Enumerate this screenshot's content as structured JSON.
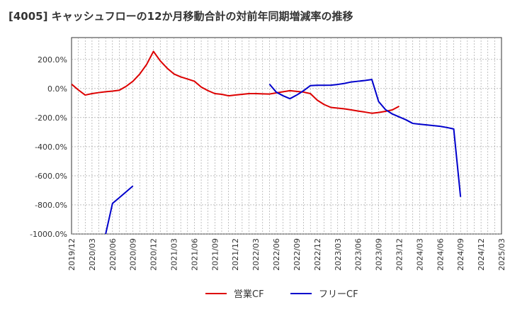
{
  "chart_data": {
    "type": "line",
    "title": "[4005]  キャッシュフローの12か月移動合計の対前年同期増減率の推移",
    "xlabel": "",
    "ylabel": "",
    "ylim": [
      -1000,
      350
    ],
    "yticks": [
      200,
      0,
      -200,
      -400,
      -600,
      -800,
      -1000
    ],
    "ytick_labels": [
      "200.0%",
      "0.0%",
      "-200.0%",
      "-400.0%",
      "-600.0%",
      "-800.0%",
      "-1000.0%"
    ],
    "x_start": "2019-12",
    "x_end": "2025-03",
    "xtick_labels": [
      "2019/12",
      "2020/03",
      "2020/06",
      "2020/09",
      "2020/12",
      "2021/03",
      "2021/06",
      "2021/09",
      "2021/12",
      "2022/03",
      "2022/06",
      "2022/09",
      "2022/12",
      "2023/03",
      "2023/06",
      "2023/09",
      "2023/12",
      "2024/03",
      "2024/06",
      "2024/09",
      "2024/12",
      "2025/03"
    ],
    "grid": true,
    "legend": "bottom",
    "series": [
      {
        "name": "営業CF",
        "color": "#dd0000",
        "start": "2019-12",
        "values": [
          30,
          -10,
          -45,
          -35,
          -28,
          -22,
          -18,
          -12,
          15,
          50,
          100,
          165,
          255,
          190,
          140,
          100,
          80,
          65,
          50,
          10,
          -15,
          -35,
          -40,
          -50,
          -45,
          -40,
          -35,
          -35,
          -37,
          -38,
          -30,
          -22,
          -15,
          -20,
          -25,
          -35,
          -80,
          -110,
          -130,
          -135,
          -140,
          -147,
          -155,
          -162,
          -170,
          -165,
          -157,
          -147,
          -122
        ]
      },
      {
        "name": "フリーCF",
        "color": "#0000cc",
        "start": "2020-05",
        "values": [
          -1000,
          -790,
          -750,
          -710,
          -670,
          null,
          null,
          null,
          null,
          null,
          null,
          null,
          null,
          null,
          null,
          null,
          null,
          null,
          null,
          null,
          null,
          null,
          null,
          null,
          30,
          -25,
          -50,
          -70,
          -45,
          -15,
          20,
          22,
          22,
          23,
          28,
          35,
          45,
          50,
          55,
          62,
          -90,
          -145,
          -175,
          -195,
          -215,
          -240,
          -245,
          -250,
          -255,
          -260,
          -268,
          -278,
          -745
        ]
      }
    ]
  }
}
